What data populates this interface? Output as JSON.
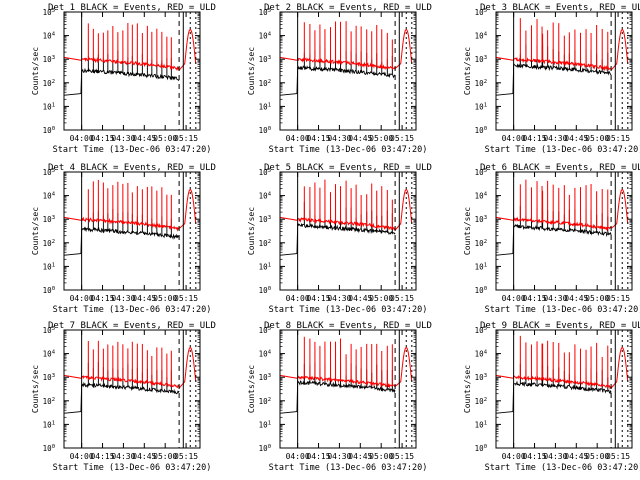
{
  "chart_data": [
    {
      "type": "line",
      "title": "Det 1 BLACK = Events, RED = ULD",
      "xlabel": "Start Time (13-Dec-06 03:47:20)",
      "ylabel": "Counts/sec",
      "yscale": "log",
      "ylim": [
        1,
        100000
      ],
      "xlim": [
        "03:47:20",
        "05:25:00"
      ],
      "xticks": [
        "04:00",
        "04:15",
        "04:30",
        "04:45",
        "05:00",
        "05:15"
      ],
      "yticks": [
        "10^0",
        "10^1",
        "10^2",
        "10^3",
        "10^4",
        "10^5"
      ],
      "legend": "in title",
      "series": [
        {
          "name": "BLACK = Events",
          "color": "#000000"
        },
        {
          "name": "RED = ULD",
          "color": "#ff0000"
        }
      ],
      "dashed_markers": [
        "05:10",
        "05:18",
        "05:22"
      ]
    },
    {
      "type": "line",
      "title": "Det 2 BLACK = Events, RED = ULD",
      "xlabel": "Start Time (13-Dec-06 03:47:20)",
      "ylabel": "Counts/sec",
      "yscale": "log",
      "ylim": [
        1,
        100000
      ],
      "xlim": [
        "03:47:20",
        "05:25:00"
      ],
      "xticks": [
        "04:00",
        "04:15",
        "04:30",
        "04:45",
        "05:00",
        "05:15"
      ],
      "yticks": [
        "10^0",
        "10^1",
        "10^2",
        "10^3",
        "10^4",
        "10^5"
      ],
      "legend": "in title",
      "series": [
        {
          "name": "BLACK = Events",
          "color": "#000000"
        },
        {
          "name": "RED = ULD",
          "color": "#ff0000"
        }
      ],
      "dashed_markers": [
        "05:10",
        "05:18",
        "05:22"
      ]
    },
    {
      "type": "line",
      "title": "Det 3 BLACK = Events, RED = ULD",
      "xlabel": "Start Time (13-Dec-06 03:47:20)",
      "ylabel": "Counts/sec",
      "yscale": "log",
      "ylim": [
        1,
        100000
      ],
      "xlim": [
        "03:47:20",
        "05:25:00"
      ],
      "xticks": [
        "04:00",
        "04:15",
        "04:30",
        "04:45",
        "05:00",
        "05:15"
      ],
      "yticks": [
        "10^0",
        "10^1",
        "10^2",
        "10^3",
        "10^4",
        "10^5"
      ],
      "legend": "in title",
      "series": [
        {
          "name": "BLACK = Events",
          "color": "#000000"
        },
        {
          "name": "RED = ULD",
          "color": "#ff0000"
        }
      ],
      "dashed_markers": [
        "05:10",
        "05:18",
        "05:22"
      ]
    },
    {
      "type": "line",
      "title": "Det 4 BLACK = Events, RED = ULD",
      "xlabel": "Start Time (13-Dec-06 03:47:20)",
      "ylabel": "Counts/sec",
      "yscale": "log",
      "ylim": [
        1,
        100000
      ],
      "xlim": [
        "03:47:20",
        "05:25:00"
      ],
      "xticks": [
        "04:00",
        "04:15",
        "04:30",
        "04:45",
        "05:00",
        "05:15"
      ],
      "yticks": [
        "10^0",
        "10^1",
        "10^2",
        "10^3",
        "10^4",
        "10^5"
      ],
      "legend": "in title",
      "series": [
        {
          "name": "BLACK = Events",
          "color": "#000000"
        },
        {
          "name": "RED = ULD",
          "color": "#ff0000"
        }
      ],
      "dashed_markers": [
        "05:10",
        "05:18",
        "05:22"
      ]
    },
    {
      "type": "line",
      "title": "Det 5 BLACK = Events, RED = ULD",
      "xlabel": "Start Time (13-Dec-06 03:47:20)",
      "ylabel": "Counts/sec",
      "yscale": "log",
      "ylim": [
        1,
        100000
      ],
      "xlim": [
        "03:47:20",
        "05:25:00"
      ],
      "xticks": [
        "04:00",
        "04:15",
        "04:30",
        "04:45",
        "05:00",
        "05:15"
      ],
      "yticks": [
        "10^0",
        "10^1",
        "10^2",
        "10^3",
        "10^4",
        "10^5"
      ],
      "legend": "in title",
      "series": [
        {
          "name": "BLACK = Events",
          "color": "#000000"
        },
        {
          "name": "RED = ULD",
          "color": "#ff0000"
        }
      ],
      "dashed_markers": [
        "05:10",
        "05:18",
        "05:22"
      ]
    },
    {
      "type": "line",
      "title": "Det 6 BLACK = Events, RED = ULD",
      "xlabel": "Start Time (13-Dec-06 03:47:20)",
      "ylabel": "Counts/sec",
      "yscale": "log",
      "ylim": [
        1,
        100000
      ],
      "xlim": [
        "03:47:20",
        "05:25:00"
      ],
      "xticks": [
        "04:00",
        "04:15",
        "04:30",
        "04:45",
        "05:00",
        "05:15"
      ],
      "yticks": [
        "10^0",
        "10^1",
        "10^2",
        "10^3",
        "10^4",
        "10^5"
      ],
      "legend": "in title",
      "series": [
        {
          "name": "BLACK = Events",
          "color": "#000000"
        },
        {
          "name": "RED = ULD",
          "color": "#ff0000"
        }
      ],
      "dashed_markers": [
        "05:10",
        "05:18",
        "05:22"
      ]
    },
    {
      "type": "line",
      "title": "Det 7 BLACK = Events, RED = ULD",
      "xlabel": "Start Time (13-Dec-06 03:47:20)",
      "ylabel": "Counts/sec",
      "yscale": "log",
      "ylim": [
        1,
        100000
      ],
      "xlim": [
        "03:47:20",
        "05:25:00"
      ],
      "xticks": [
        "04:00",
        "04:15",
        "04:30",
        "04:45",
        "05:00",
        "05:15"
      ],
      "yticks": [
        "10^0",
        "10^1",
        "10^2",
        "10^3",
        "10^4",
        "10^5"
      ],
      "legend": "in title",
      "series": [
        {
          "name": "BLACK = Events",
          "color": "#000000"
        },
        {
          "name": "RED = ULD",
          "color": "#ff0000"
        }
      ],
      "dashed_markers": [
        "05:10",
        "05:18",
        "05:22"
      ]
    },
    {
      "type": "line",
      "title": "Det 8 BLACK = Events, RED = ULD",
      "xlabel": "Start Time (13-Dec-06 03:47:20)",
      "ylabel": "Counts/sec",
      "yscale": "log",
      "ylim": [
        1,
        100000
      ],
      "xlim": [
        "03:47:20",
        "05:25:00"
      ],
      "xticks": [
        "04:00",
        "04:15",
        "04:30",
        "04:45",
        "05:00",
        "05:15"
      ],
      "yticks": [
        "10^0",
        "10^1",
        "10^2",
        "10^3",
        "10^4",
        "10^5"
      ],
      "legend": "in title",
      "series": [
        {
          "name": "BLACK = Events",
          "color": "#000000"
        },
        {
          "name": "RED = ULD",
          "color": "#ff0000"
        }
      ],
      "dashed_markers": [
        "05:10",
        "05:18",
        "05:22"
      ]
    },
    {
      "type": "line",
      "title": "Det 9 BLACK = Events, RED = ULD",
      "xlabel": "Start Time (13-Dec-06 03:47:20)",
      "ylabel": "Counts/sec",
      "yscale": "log",
      "ylim": [
        1,
        100000
      ],
      "xlim": [
        "03:47:20",
        "05:25:00"
      ],
      "xticks": [
        "04:00",
        "04:15",
        "04:30",
        "04:45",
        "05:00",
        "05:15"
      ],
      "yticks": [
        "10^0",
        "10^1",
        "10^2",
        "10^3",
        "10^4",
        "10^5"
      ],
      "legend": "in title",
      "series": [
        {
          "name": "BLACK = Events",
          "color": "#000000"
        },
        {
          "name": "RED = ULD",
          "color": "#ff0000"
        }
      ],
      "dashed_markers": [
        "05:10",
        "05:18",
        "05:22"
      ]
    }
  ]
}
